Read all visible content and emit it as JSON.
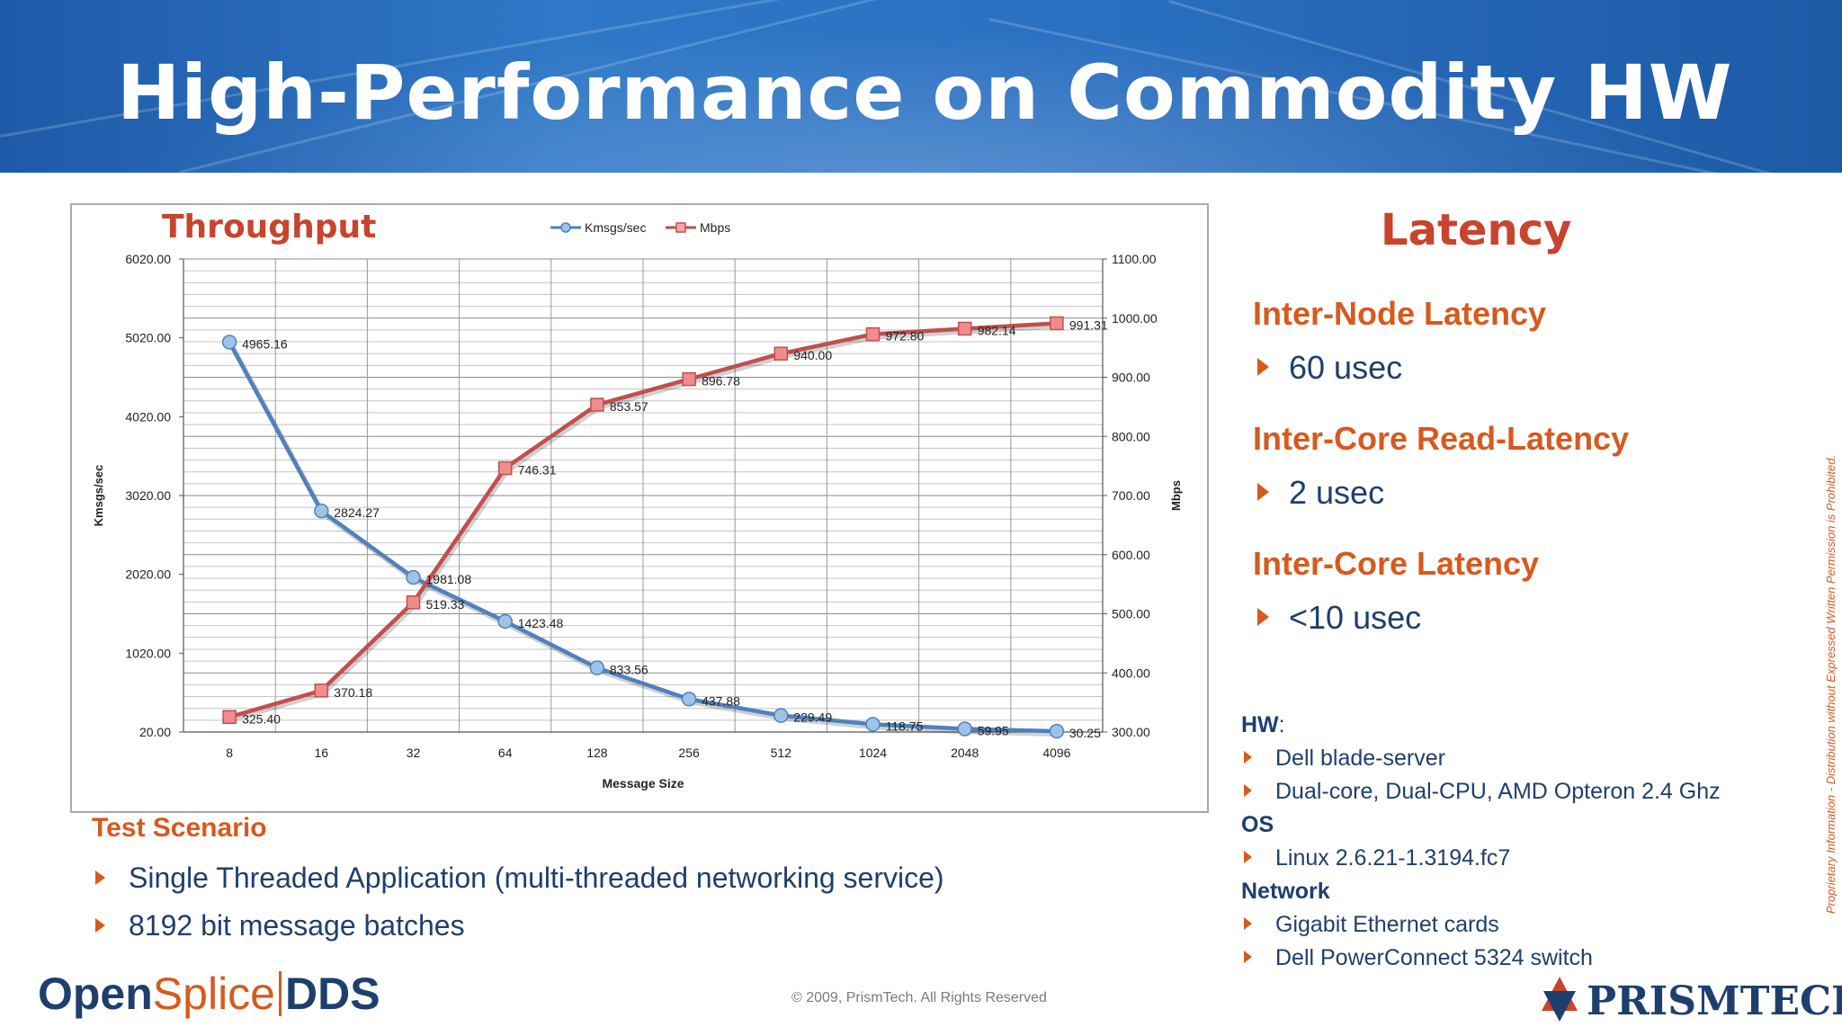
{
  "slide": {
    "title": "High-Performance on Commodity HW",
    "copyright": "© 2009, PrismTech. All Rights Reserved",
    "proprietary": "Proprietary Information - Distribution without Expressed Written Permission is Prohibited."
  },
  "latency": {
    "title": "Latency",
    "items": [
      {
        "heading": "Inter-Node Latency",
        "value": "60 usec"
      },
      {
        "heading": "Inter-Core Read-Latency",
        "value": "2 usec"
      },
      {
        "heading": "Inter-Core Latency",
        "value": "<10 usec"
      }
    ]
  },
  "hardware": {
    "hw_label": "HW",
    "hw_colon": ":",
    "hw_items": [
      "Dell blade-server",
      "Dual-core, Dual-CPU, AMD Opteron 2.4 Ghz"
    ],
    "os_label": "OS",
    "os_items": [
      "Linux 2.6.21-1.3194.fc7"
    ],
    "network_label": "Network",
    "network_items": [
      "Gigabit Ethernet cards",
      "Dell PowerConnect 5324 switch"
    ]
  },
  "test_scenario": {
    "title": "Test Scenario",
    "items": [
      "Single Threaded Application (multi-threaded networking service)",
      "8192 bit message batches"
    ]
  },
  "logos": {
    "opensplice_open": "Open",
    "opensplice_splice": "Splice",
    "opensplice_dds": "DDS",
    "prismtech": "PRISMTECH"
  },
  "chart_data": {
    "type": "line",
    "title": "Throughput",
    "xlabel": "Message Size",
    "ylabel_left": "Kmsgs/sec",
    "ylabel_right": "Mbps",
    "categories": [
      "8",
      "16",
      "32",
      "64",
      "128",
      "256",
      "512",
      "1024",
      "2048",
      "4096"
    ],
    "ylim_left": [
      20,
      6020
    ],
    "ylim_right": [
      300,
      1100
    ],
    "yticks_left": [
      "6020.00",
      "5020.00",
      "4020.00",
      "3020.00",
      "2020.00",
      "1020.00",
      "20.00"
    ],
    "yticks_right": [
      "1100.00",
      "1000.00",
      "900.00",
      "800.00",
      "700.00",
      "600.00",
      "500.00",
      "400.00",
      "300.00"
    ],
    "grid": true,
    "legend_position": "top",
    "series": [
      {
        "name": "Kmsgs/sec",
        "axis": "left",
        "color": "#4f81bd",
        "values": [
          4965.16,
          2824.27,
          1981.08,
          1423.48,
          833.56,
          437.88,
          229.49,
          118.75,
          59.95,
          30.25
        ],
        "labels": [
          "4965.16",
          "2824.27",
          "1981.08",
          "1423.48",
          "833.56",
          "437.88",
          "229.49",
          "118.75",
          "59.95",
          "30.25"
        ]
      },
      {
        "name": "Mbps",
        "axis": "right",
        "color": "#c0504d",
        "values": [
          325.4,
          370.18,
          519.33,
          746.31,
          853.57,
          896.78,
          940.0,
          972.8,
          982.14,
          991.31
        ],
        "labels": [
          "325.40",
          "370.18",
          "519.33",
          "746.31",
          "853.57",
          "896.78",
          "940.00",
          "972.80",
          "982.14",
          "991.31"
        ]
      }
    ]
  }
}
